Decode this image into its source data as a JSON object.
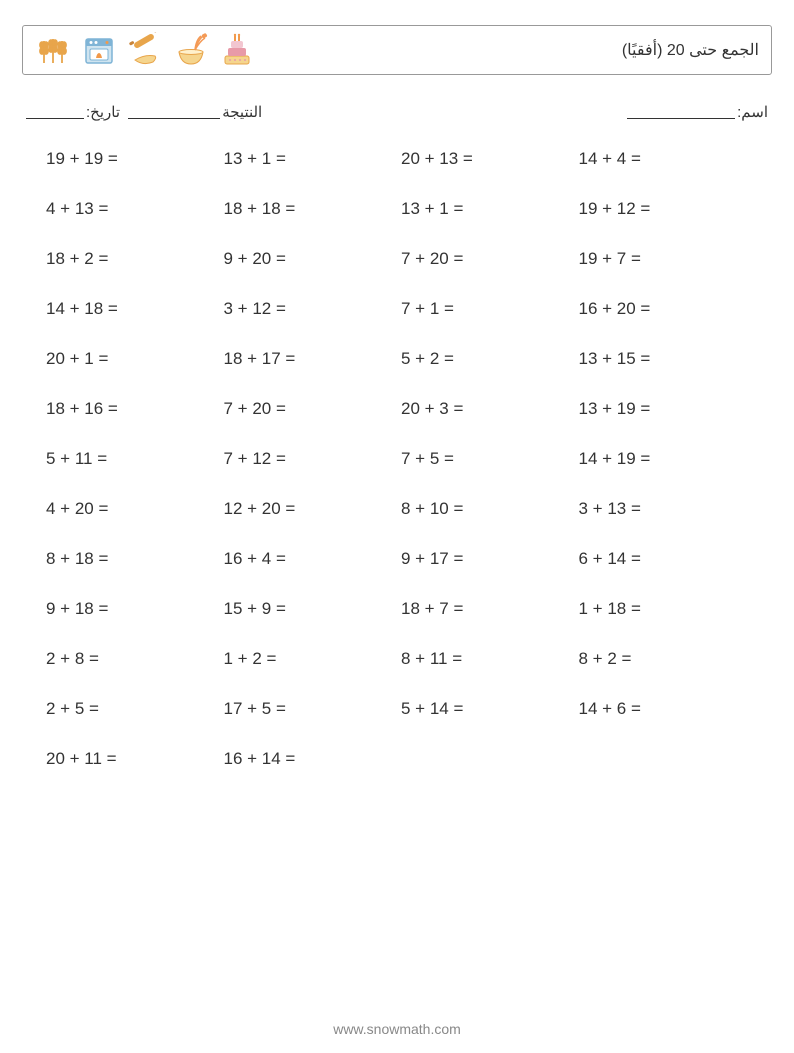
{
  "header": {
    "title": "الجمع حتى 20 (أفقيًا)",
    "background_color": "#ffffff",
    "border_color": "#999999",
    "text_color": "#333333",
    "icons": [
      "wheat-icon",
      "oven-icon",
      "rolling-pin-icon",
      "whisk-bowl-icon",
      "cake-icon"
    ],
    "icon_colors": {
      "wheat": "#e8a54b",
      "oven_body": "#7fb4d6",
      "oven_flame": "#f2994a",
      "rolling_pin": "#e8a54b",
      "dough": "#f5d58e",
      "bowl": "#f5d58e",
      "whisk": "#f49a56",
      "cake_top": "#f2c6d0",
      "cake_mid": "#e89aa8",
      "cake_base": "#f5d58e",
      "candle": "#f2994a"
    }
  },
  "info": {
    "name_label": "اسم:",
    "score_label": "النتيجة",
    "date_label": "تاريخ:",
    "blank_short_width": 58,
    "blank_long_width": 108,
    "blank_mid_width": 92,
    "font_size": 15,
    "text_color": "#333333"
  },
  "grid": {
    "columns": 4,
    "row_gap": 30,
    "font_size": 17,
    "text_color": "#333333"
  },
  "problems": [
    "19 + 19 =",
    "13 + 1 =",
    "20 + 13 =",
    "14 + 4 =",
    "4 + 13 =",
    "18 + 18 =",
    "13 + 1 =",
    "19 + 12 =",
    "18 + 2 =",
    "9 + 20 =",
    "7 + 20 =",
    "19 + 7 =",
    "14 + 18 =",
    "3 + 12 =",
    "7 + 1 =",
    "16 + 20 =",
    "20 + 1 =",
    "18 + 17 =",
    "5 + 2 =",
    "13 + 15 =",
    "18 + 16 =",
    "7 + 20 =",
    "20 + 3 =",
    "13 + 19 =",
    "5 + 11 =",
    "7 + 12 =",
    "7 + 5 =",
    "14 + 19 =",
    "4 + 20 =",
    "12 + 20 =",
    "8 + 10 =",
    "3 + 13 =",
    "8 + 18 =",
    "16 + 4 =",
    "9 + 17 =",
    "6 + 14 =",
    "9 + 18 =",
    "15 + 9 =",
    "18 + 7 =",
    "1 + 18 =",
    "2 + 8 =",
    "1 + 2 =",
    "8 + 11 =",
    "8 + 2 =",
    "2 + 5 =",
    "17 + 5 =",
    "5 + 14 =",
    "14 + 6 =",
    "20 + 11 =",
    "16 + 14 ="
  ],
  "footer": {
    "text": "www.snowmath.com",
    "font_size": 14,
    "text_color": "#888888"
  }
}
